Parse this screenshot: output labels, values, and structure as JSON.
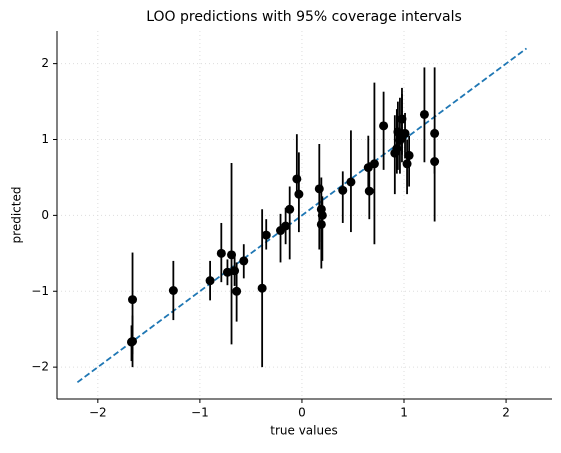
{
  "chart_data": {
    "type": "scatter",
    "title": "LOO predictions with 95% coverage intervals",
    "xlabel": "true values",
    "ylabel": "predicted",
    "xlim": [
      -2.4,
      2.45
    ],
    "ylim": [
      -2.42,
      2.43
    ],
    "xticks": [
      {
        "value": -2,
        "label": "−2"
      },
      {
        "value": -1,
        "label": "−1"
      },
      0,
      1,
      2
    ],
    "yticks": [
      {
        "value": -2,
        "label": "−2"
      },
      {
        "value": -1,
        "label": "−1"
      },
      0,
      1,
      2
    ],
    "grid": true,
    "reference_line": {
      "x": [
        -2.2,
        2.2
      ],
      "y": [
        -2.2,
        2.2
      ],
      "color": "#1f77b4"
    },
    "series": [
      {
        "color": "#000000",
        "x": [
          -1.66,
          -1.66,
          -1.67,
          -1.26,
          -0.9,
          -0.79,
          -0.73,
          -0.69,
          -0.66,
          -0.64,
          -0.57,
          -0.39,
          -0.35,
          -0.21,
          -0.16,
          -0.12,
          -0.05,
          -0.03,
          0.17,
          0.19,
          0.19,
          0.2,
          0.4,
          0.48,
          0.65,
          0.66,
          0.71,
          0.8,
          0.91,
          0.93,
          0.94,
          0.96,
          0.98,
          0.98,
          1.01,
          1.03,
          1.05,
          1.2,
          1.3,
          1.3
        ],
        "values": [
          -1.11,
          -1.66,
          -1.67,
          -0.99,
          -0.86,
          -0.5,
          -0.75,
          -0.52,
          -0.73,
          -1.0,
          -0.6,
          -0.96,
          -0.26,
          -0.2,
          -0.14,
          0.08,
          0.48,
          0.28,
          0.35,
          0.08,
          -0.12,
          0.0,
          0.33,
          0.44,
          0.63,
          0.32,
          0.68,
          1.18,
          0.82,
          0.88,
          1.1,
          0.99,
          1.02,
          1.27,
          1.08,
          0.68,
          0.79,
          1.33,
          1.08,
          0.71
        ],
        "lower": [
          -1.83,
          -2.0,
          -1.92,
          -1.38,
          -1.12,
          -0.88,
          -0.92,
          -1.7,
          -0.93,
          -1.4,
          -0.83,
          -2.0,
          -0.45,
          -0.62,
          -0.38,
          -0.58,
          0.3,
          -0.22,
          -0.45,
          -0.7,
          -0.35,
          -0.6,
          -0.1,
          -0.22,
          0.3,
          -0.05,
          -0.38,
          0.6,
          0.28,
          0.55,
          0.6,
          0.55,
          0.7,
          0.8,
          0.75,
          0.28,
          0.38,
          0.7,
          0.55,
          -0.08
        ],
        "upper": [
          -0.49,
          -1.32,
          -1.45,
          -0.6,
          -0.6,
          -0.1,
          -0.58,
          0.69,
          -0.52,
          -0.62,
          -0.38,
          0.08,
          -0.05,
          0.02,
          0.1,
          0.38,
          1.07,
          0.83,
          0.94,
          0.5,
          0.14,
          0.25,
          0.58,
          1.12,
          1.05,
          0.7,
          1.75,
          1.63,
          1.32,
          1.4,
          1.5,
          1.55,
          1.6,
          1.68,
          1.35,
          1.0,
          1.05,
          1.95,
          1.95,
          1.15
        ]
      }
    ]
  }
}
